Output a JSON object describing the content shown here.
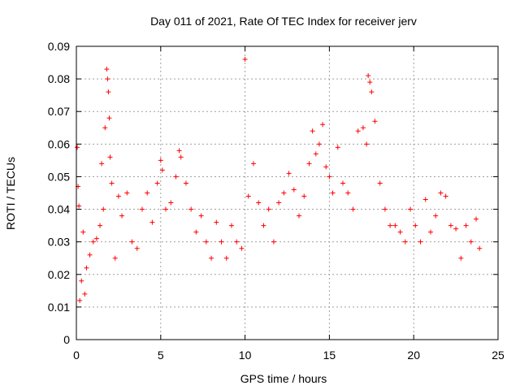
{
  "chart_data": {
    "type": "scatter",
    "title": "Day 011 of 2021, Rate Of TEC Index for receiver jerv",
    "xlabel": "GPS time / hours",
    "ylabel": "ROTI / TECUs",
    "xlim": [
      0,
      25
    ],
    "ylim": [
      0,
      0.09
    ],
    "x_ticks": [
      0,
      5,
      10,
      15,
      20,
      25
    ],
    "x_tick_labels": [
      "0",
      "5",
      "10",
      "15",
      "20",
      "25"
    ],
    "y_ticks": [
      0,
      0.01,
      0.02,
      0.03,
      0.04,
      0.05,
      0.06,
      0.07,
      0.08,
      0.09
    ],
    "y_tick_labels": [
      "0",
      "0.01",
      "0.02",
      "0.03",
      "0.04",
      "0.05",
      "0.06",
      "0.07",
      "0.08",
      "0.09"
    ],
    "grid": true,
    "marker": "+",
    "marker_color": "#ff0000",
    "series": [
      {
        "name": "ROTI",
        "x": [
          0.05,
          0.1,
          0.15,
          0.2,
          0.3,
          0.4,
          0.5,
          0.6,
          0.8,
          1.0,
          1.2,
          1.4,
          1.5,
          1.6,
          1.7,
          1.8,
          1.85,
          1.9,
          1.95,
          2.0,
          2.1,
          2.3,
          2.5,
          2.7,
          3.0,
          3.3,
          3.6,
          3.9,
          4.2,
          4.5,
          4.8,
          5.0,
          5.1,
          5.3,
          5.6,
          5.9,
          6.1,
          6.2,
          6.5,
          6.8,
          7.1,
          7.4,
          7.7,
          8.0,
          8.3,
          8.6,
          8.9,
          9.2,
          9.5,
          9.8,
          10.0,
          10.2,
          10.5,
          10.8,
          11.1,
          11.4,
          11.7,
          12.0,
          12.3,
          12.6,
          12.9,
          13.2,
          13.5,
          13.8,
          14.0,
          14.2,
          14.4,
          14.6,
          14.8,
          15.0,
          15.2,
          15.5,
          15.8,
          16.1,
          16.4,
          16.7,
          17.0,
          17.2,
          17.3,
          17.4,
          17.5,
          17.7,
          18.0,
          18.3,
          18.6,
          18.9,
          19.2,
          19.5,
          19.8,
          20.1,
          20.4,
          20.7,
          21.0,
          21.3,
          21.6,
          21.9,
          22.2,
          22.5,
          22.8,
          23.1,
          23.4,
          23.7,
          23.9
        ],
        "y": [
          0.059,
          0.047,
          0.041,
          0.012,
          0.018,
          0.033,
          0.014,
          0.022,
          0.026,
          0.03,
          0.031,
          0.035,
          0.054,
          0.04,
          0.065,
          0.083,
          0.08,
          0.076,
          0.068,
          0.056,
          0.048,
          0.025,
          0.044,
          0.038,
          0.045,
          0.03,
          0.028,
          0.04,
          0.045,
          0.036,
          0.048,
          0.055,
          0.052,
          0.04,
          0.042,
          0.05,
          0.058,
          0.056,
          0.048,
          0.04,
          0.033,
          0.038,
          0.03,
          0.025,
          0.036,
          0.03,
          0.025,
          0.035,
          0.03,
          0.028,
          0.086,
          0.044,
          0.054,
          0.042,
          0.035,
          0.04,
          0.03,
          0.042,
          0.045,
          0.051,
          0.046,
          0.038,
          0.044,
          0.054,
          0.064,
          0.057,
          0.06,
          0.066,
          0.053,
          0.05,
          0.045,
          0.059,
          0.048,
          0.045,
          0.04,
          0.064,
          0.065,
          0.06,
          0.081,
          0.079,
          0.076,
          0.067,
          0.048,
          0.04,
          0.035,
          0.035,
          0.033,
          0.03,
          0.04,
          0.035,
          0.03,
          0.043,
          0.033,
          0.038,
          0.045,
          0.044,
          0.035,
          0.034,
          0.025,
          0.035,
          0.03,
          0.037,
          0.028
        ]
      }
    ]
  }
}
